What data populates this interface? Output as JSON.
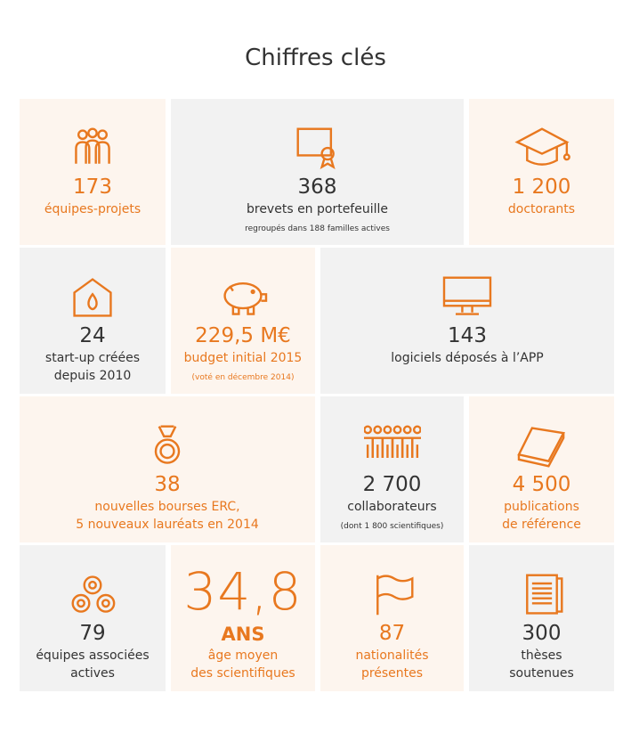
{
  "title": "Chiffres clés",
  "tiles": [
    {
      "value": "173",
      "label": [
        "équipes-projets"
      ]
    },
    {
      "value": "368",
      "label": [
        "brevets en portefeuille"
      ],
      "note": "regroupés dans 188 familles actives"
    },
    {
      "value": "1 200",
      "label": [
        "doctorants"
      ]
    },
    {
      "value": "24",
      "label": [
        "start-up créées",
        "depuis 2010"
      ]
    },
    {
      "value": "229,5 M€",
      "label": [
        "budget initial 2015"
      ],
      "note": "(voté en décembre 2014)"
    },
    {
      "value": "143",
      "label": [
        "logiciels déposés à l’APP"
      ]
    },
    {
      "value": "38",
      "label": [
        "nouvelles bourses ERC,",
        "5 nouveaux lauréats en 2014"
      ]
    },
    {
      "value": "2 700",
      "label": [
        "collaborateurs"
      ],
      "note": "(dont 1 800 scientifiques)"
    },
    {
      "value": "4 500",
      "label": [
        "publications",
        "de référence"
      ]
    },
    {
      "value": "79",
      "label": [
        "équipes associées",
        "actives"
      ]
    },
    {
      "value": "34,8",
      "unit": "ANS",
      "label": [
        "âge moyen",
        "des scientifiques"
      ]
    },
    {
      "value": "87",
      "label": [
        "nationalités",
        "présentes"
      ]
    },
    {
      "value": "300",
      "label": [
        "thèses",
        "soutenues"
      ]
    }
  ]
}
